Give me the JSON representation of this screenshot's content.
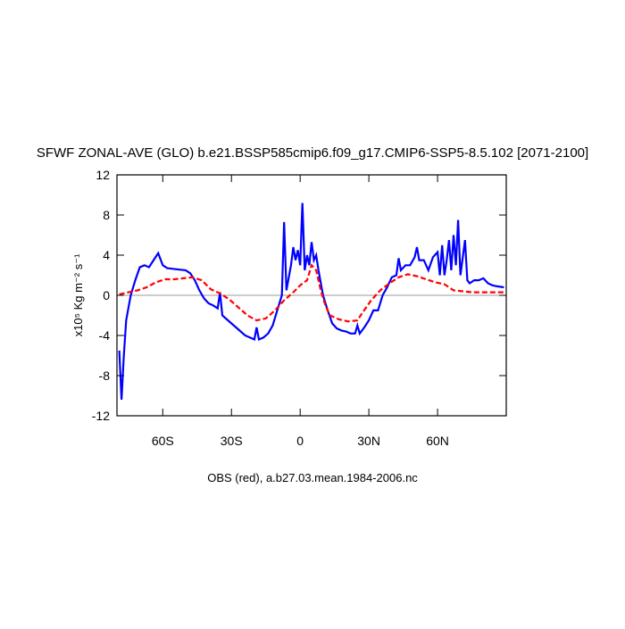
{
  "chart_data": {
    "type": "line",
    "title": "SFWF ZONAL-AVE (GLO) b.e21.BSSP585cmip6.f09_g17.CMIP6-SSP5-8.5.102 [2071-2100]",
    "ylabel": "x10⁵ Kg m⁻² s⁻¹",
    "annotation": "OBS (red), a.b27.03.mean.1984-2006.nc",
    "xlim": [
      -80,
      90
    ],
    "xticks": [
      {
        "value": -60,
        "label": "60S"
      },
      {
        "value": -30,
        "label": "30S"
      },
      0,
      {
        "value": 30,
        "label": "30N"
      },
      {
        "value": 60,
        "label": "60N"
      }
    ],
    "ylim": [
      -12,
      12
    ],
    "yticks": [
      -12,
      -8,
      -4,
      0,
      4,
      8,
      12
    ],
    "reference_line": 0,
    "series": [
      {
        "color": "#0000ff",
        "dash": false,
        "x": [
          -79,
          -78,
          -77,
          -76,
          -74,
          -72,
          -70,
          -68,
          -66,
          -64,
          -62,
          -60,
          -58,
          -54,
          -50,
          -48,
          -46,
          -44,
          -42,
          -40,
          -38,
          -36,
          -35,
          -34,
          -32,
          -30,
          -28,
          -26,
          -24,
          -22,
          -20,
          -19,
          -18,
          -16,
          -14,
          -12,
          -10,
          -8,
          -7,
          -6,
          -4,
          -3,
          -2,
          -1,
          0,
          1,
          2,
          3,
          4,
          5,
          6,
          7,
          8,
          10,
          12,
          14,
          16,
          18,
          20,
          22,
          24,
          25,
          26,
          28,
          30,
          32,
          34,
          36,
          38,
          40,
          42,
          43,
          44,
          46,
          48,
          50,
          51,
          52,
          54,
          56,
          58,
          60,
          61,
          62,
          63,
          64,
          65,
          66,
          67,
          68,
          69,
          70,
          72,
          73,
          74,
          76,
          78,
          80,
          82,
          84,
          86,
          89
        ],
        "values": [
          -5.5,
          -10.4,
          -6,
          -2.5,
          0,
          1.5,
          2.8,
          3.0,
          2.8,
          3.5,
          4.2,
          3.0,
          2.7,
          2.6,
          2.5,
          2.2,
          1.5,
          0.5,
          -0.3,
          -0.8,
          -1.0,
          -1.3,
          0.3,
          -2.0,
          -2.4,
          -2.8,
          -3.2,
          -3.6,
          -4.0,
          -4.2,
          -4.4,
          -3.2,
          -4.4,
          -4.2,
          -3.8,
          -3.0,
          -1.5,
          0,
          7.3,
          0.5,
          3.0,
          4.8,
          3.5,
          4.5,
          3.0,
          9.2,
          2.5,
          4.0,
          3.0,
          5.3,
          3.5,
          4.0,
          2.5,
          0,
          -1.5,
          -2.8,
          -3.3,
          -3.5,
          -3.6,
          -3.8,
          -3.8,
          -3.0,
          -3.8,
          -3.2,
          -2.5,
          -1.5,
          -1.5,
          0,
          0.8,
          1.8,
          2.0,
          3.7,
          2.5,
          3.0,
          3.0,
          3.8,
          4.8,
          3.5,
          3.5,
          2.5,
          3.8,
          4.3,
          2.0,
          5.0,
          2.0,
          3.5,
          5.5,
          2.5,
          6.0,
          3.0,
          7.5,
          2.0,
          5.5,
          1.5,
          1.2,
          1.5,
          1.5,
          1.7,
          1.2,
          1.0,
          0.9,
          0.8
        ]
      },
      {
        "color": "#ff0000",
        "dash": true,
        "x": [
          -79,
          -75,
          -71,
          -67,
          -63,
          -59,
          -55,
          -51,
          -47,
          -43,
          -39,
          -35,
          -31,
          -27,
          -23,
          -19,
          -15,
          -11,
          -7,
          -3,
          0,
          3,
          5,
          7,
          9,
          11,
          13,
          17,
          21,
          25,
          27,
          31,
          35,
          39,
          43,
          47,
          51,
          55,
          59,
          63,
          67,
          71,
          75,
          79,
          83,
          89
        ],
        "values": [
          0.1,
          0.3,
          0.5,
          0.8,
          1.3,
          1.6,
          1.6,
          1.7,
          1.8,
          1.5,
          0.6,
          0.2,
          -0.4,
          -1.2,
          -2.0,
          -2.5,
          -2.3,
          -1.5,
          -0.5,
          0.3,
          1.0,
          1.5,
          3.0,
          2.5,
          0.5,
          -1.0,
          -2.0,
          -2.4,
          -2.6,
          -2.5,
          -1.8,
          -0.5,
          0.5,
          1.2,
          1.8,
          2.1,
          1.9,
          1.6,
          1.3,
          1.1,
          0.5,
          0.4,
          0.3,
          0.3,
          0.3,
          0.3
        ]
      }
    ]
  }
}
